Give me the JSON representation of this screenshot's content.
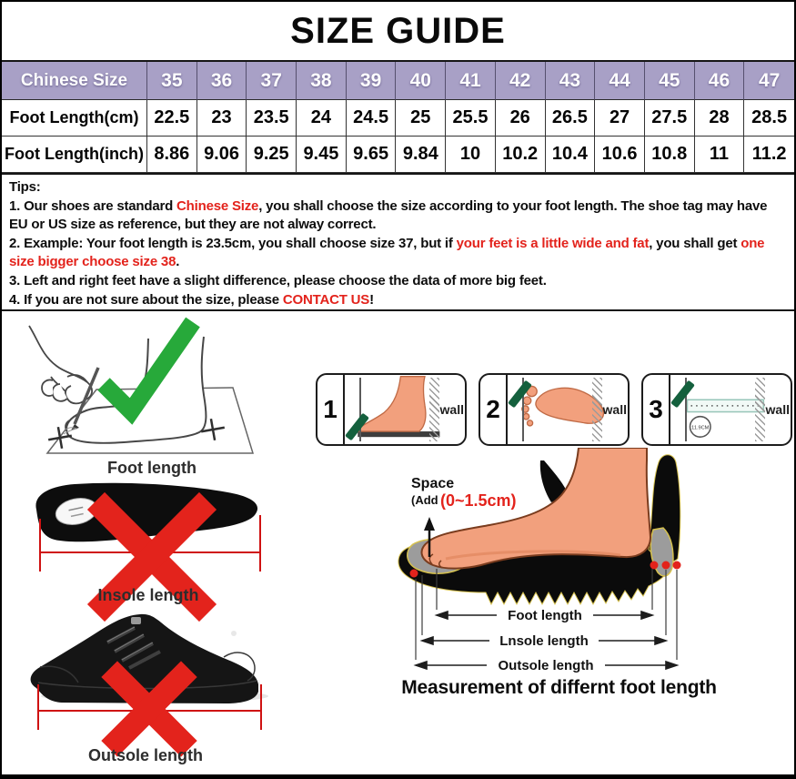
{
  "title": "SIZE GUIDE",
  "size_table": {
    "corner_label": "Chinese Size",
    "sizes": [
      "35",
      "36",
      "37",
      "38",
      "39",
      "40",
      "41",
      "42",
      "43",
      "44",
      "45",
      "46",
      "47"
    ],
    "rows": [
      {
        "label": "Foot Length(cm)",
        "values": [
          "22.5",
          "23",
          "23.5",
          "24",
          "24.5",
          "25",
          "25.5",
          "26",
          "26.5",
          "27",
          "27.5",
          "28",
          "28.5"
        ]
      },
      {
        "label": "Foot Length(inch)",
        "values": [
          "8.86",
          "9.06",
          "9.25",
          "9.45",
          "9.65",
          "9.84",
          "10",
          "10.2",
          "10.4",
          "10.6",
          "10.8",
          "11",
          "11.2"
        ]
      }
    ]
  },
  "tips": {
    "lines": [
      [
        {
          "text": "Tips:",
          "color": "black"
        }
      ],
      [
        {
          "text": "1. Our shoes are standard ",
          "color": "black"
        },
        {
          "text": "Chinese Size",
          "color": "red"
        },
        {
          "text": ", you shall choose the size according to your foot length. The shoe tag may have",
          "color": "black"
        }
      ],
      [
        {
          "text": "EU or US size as reference, but they are not alway correct.",
          "color": "black"
        }
      ],
      [
        {
          "text": "2. Example: Your foot length is 23.5cm, you shall choose size 37, but if ",
          "color": "black"
        },
        {
          "text": "your feet is a little wide and fat",
          "color": "red"
        },
        {
          "text": ", you shall get ",
          "color": "black"
        },
        {
          "text": "one",
          "color": "red"
        }
      ],
      [
        {
          "text": "size bigger choose size 38",
          "color": "red"
        },
        {
          "text": ".",
          "color": "black"
        }
      ],
      [
        {
          "text": "3. Left and right feet have a slight difference, please choose the data of more big feet.",
          "color": "black"
        }
      ],
      [
        {
          "text": "4. If you are not sure about the size, please ",
          "color": "black"
        },
        {
          "text": "CONTACT US",
          "color": "red"
        },
        {
          "text": "!",
          "color": "black"
        }
      ]
    ]
  },
  "figures": {
    "foot_length_label": "Foot length",
    "insole_length_label": "Insole length",
    "outsole_length_label": "Outsole length"
  },
  "panels": [
    {
      "number": "1",
      "wall_label": "wall"
    },
    {
      "number": "2",
      "wall_label": "wall"
    },
    {
      "number": "3",
      "wall_label": "wall",
      "ruler_note": "11.9CM"
    }
  ],
  "diagram": {
    "space_label": "Space",
    "add_label": "(Add",
    "range_label": "(0~1.5cm)",
    "foot_length_label": "Foot length",
    "insole_length_label": "Lnsole length",
    "outsole_length_label": "Outsole length",
    "caption": "Measurement of differnt foot length"
  },
  "colors": {
    "header_bg": "#a8a0c6",
    "accent_red": "#e3231c",
    "check_green": "#27a93a",
    "marker_green": "#14603d",
    "skin": "#f2a07d"
  }
}
